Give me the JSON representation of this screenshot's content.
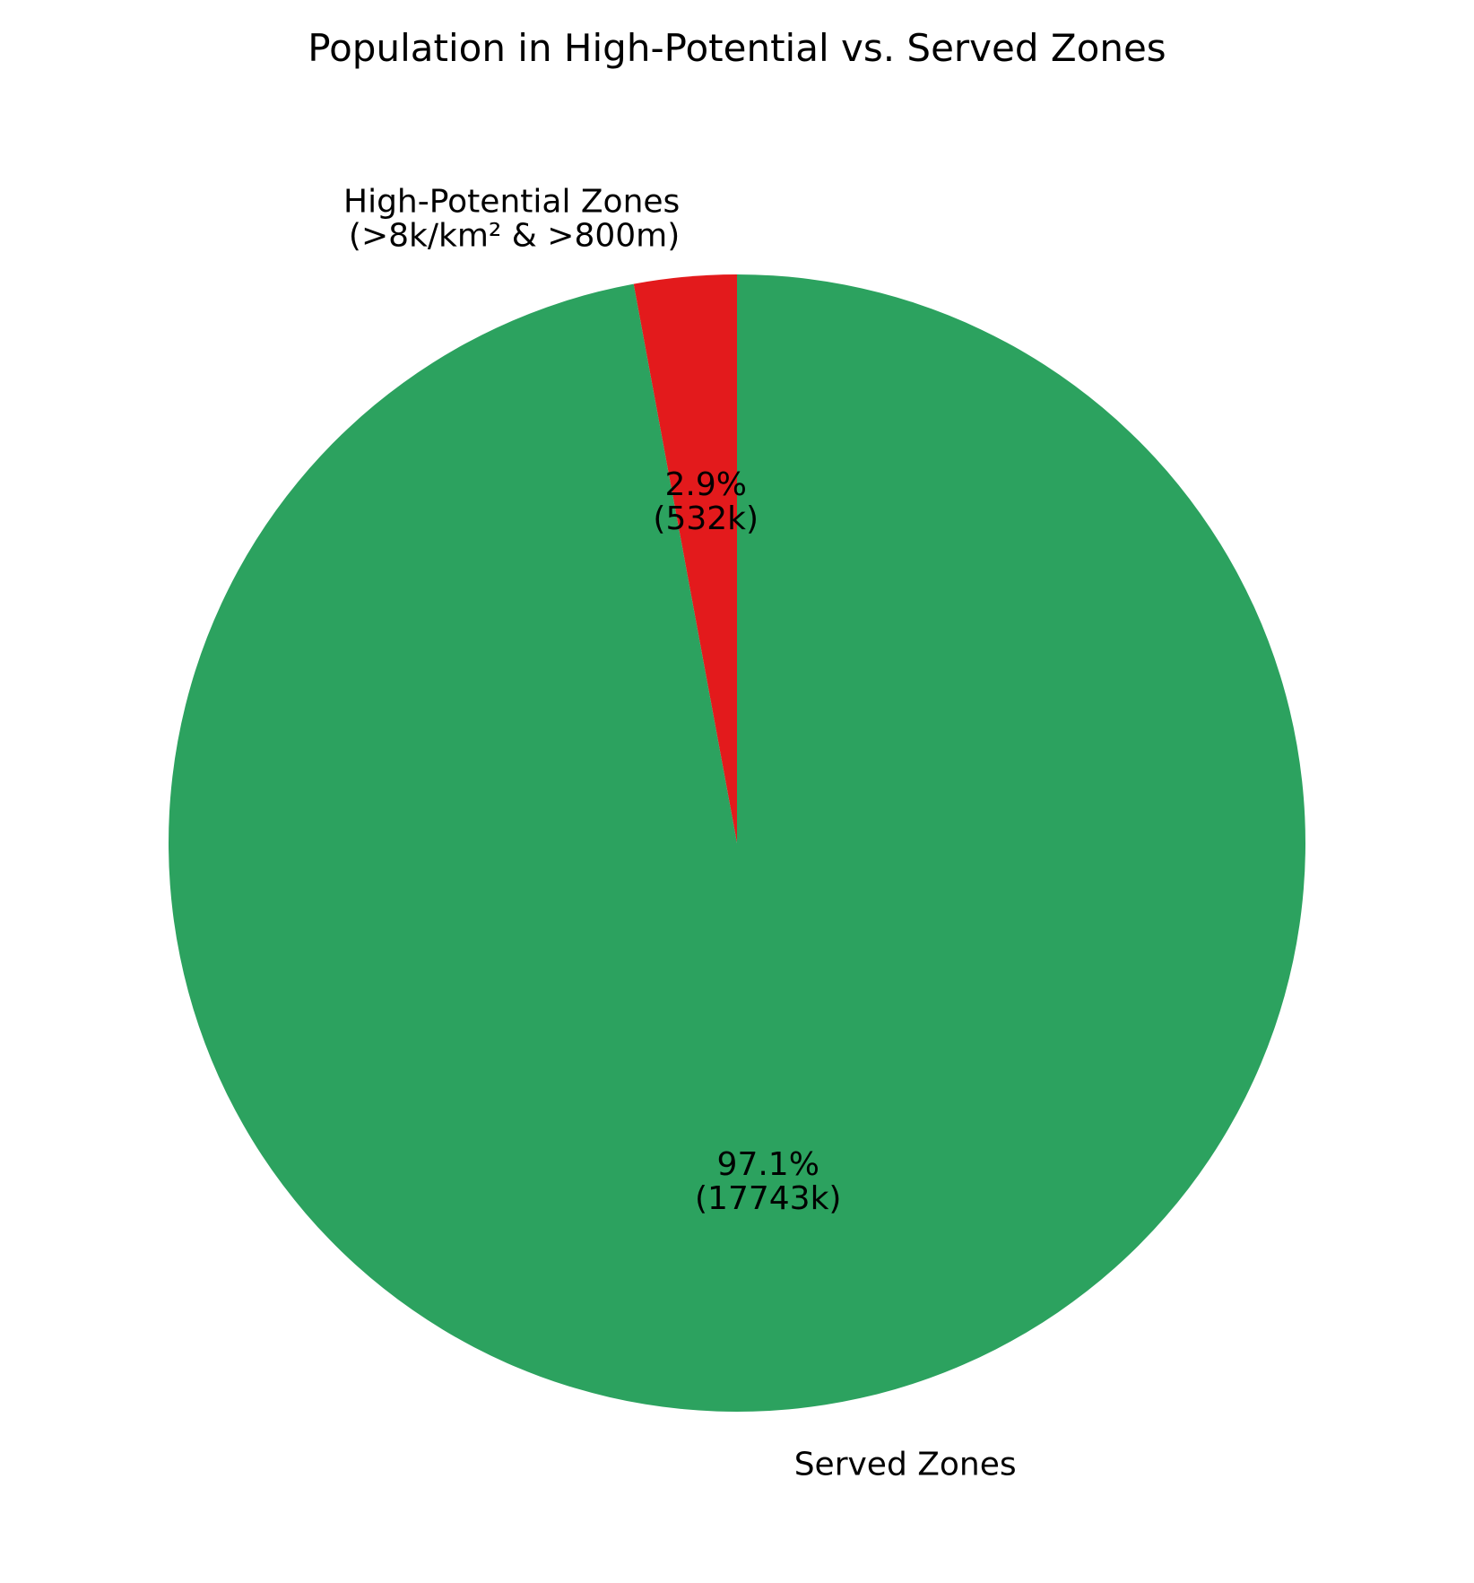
{
  "chart_data": {
    "type": "pie",
    "title": "Population in High-Potential vs. Served Zones",
    "start_angle_deg": 90,
    "direction": "counterclockwise",
    "slices": [
      {
        "label_lines": [
          "High-Potential Zones",
          "(>8k/km² & >800m)"
        ],
        "value": 532,
        "pct_label": "2.9%",
        "value_label": "(532k)",
        "color": "#e31a1c"
      },
      {
        "label_lines": [
          "Served Zones"
        ],
        "value": 17743,
        "pct_label": "97.1%",
        "value_label": "(17743k)",
        "color": "#2ca25f"
      }
    ]
  }
}
